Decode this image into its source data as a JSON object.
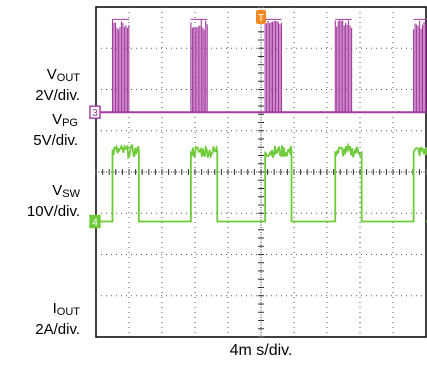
{
  "chart_data": {
    "type": "line",
    "xlabel": "4m s/div.",
    "trigger_marker": "T",
    "grid": true,
    "x": {
      "divisions": 10,
      "unit_per_div_ms": 4
    },
    "y": {
      "divisions": 8
    },
    "series": [
      {
        "name": "V_OUT",
        "name_main": "V",
        "name_sub": "OUT",
        "scale": "2V/div.",
        "channel": "1",
        "color": "#1f4fa8",
        "level_div": 5.7,
        "ripple_div": 0.05,
        "burst_starts_ms": [
          0.5,
          9.5,
          19.5,
          29.5,
          39.5
        ]
      },
      {
        "name": "V_PG",
        "name_main": "V",
        "name_sub": "PG",
        "scale": "5V/div.",
        "channel": "2",
        "color": "#33bfd4",
        "level_div": 4.6
      },
      {
        "name": "V_SW",
        "name_main": "V",
        "name_sub": "SW",
        "scale": "10V/div.",
        "channel": "3",
        "color": "#a43aa0",
        "level_div": 1.45,
        "high_div": 3.7,
        "burst_starts_ms": [
          2.0,
          11.5,
          20.5,
          29.0,
          38.5
        ],
        "burst_len_ms": 2.0
      },
      {
        "name": "I_OUT",
        "name_main": "I",
        "name_sub": "OUT",
        "scale": "2A/div.",
        "channel": "4",
        "color": "#6fcb3a",
        "level_div": -1.2,
        "high_div": 0.5,
        "pulse_starts_ms": [
          2.0,
          11.5,
          20.5,
          29.0,
          38.5
        ],
        "pulse_len_ms": 3.2
      }
    ]
  }
}
